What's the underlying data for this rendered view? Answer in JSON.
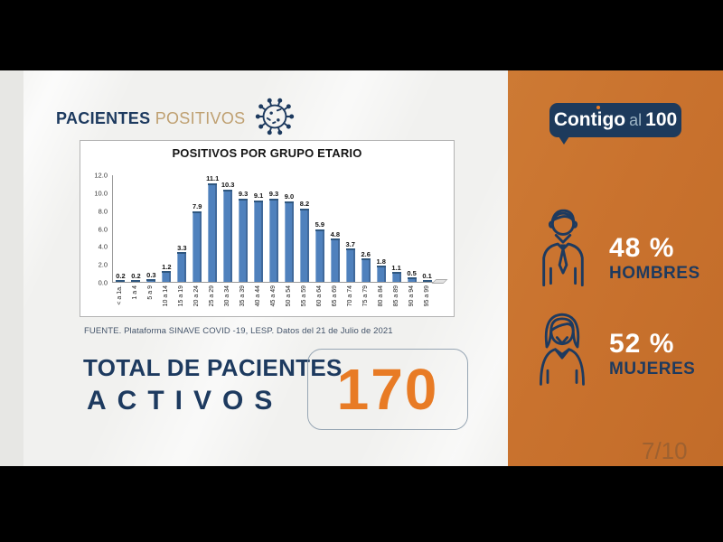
{
  "header": {
    "title_primary": "PACIENTES",
    "title_secondary": "POSITIVOS"
  },
  "chart_data": {
    "type": "bar",
    "title": "POSITIVOS POR GRUPO ETARIO",
    "categories": [
      "< a 1a.",
      "1 a 4",
      "5 a 9",
      "10 a 14",
      "15 a 19",
      "20 a 24",
      "25 a 29",
      "30 a 34",
      "35 a 39",
      "40 a 44",
      "45 a 49",
      "50 a 54",
      "55 a 59",
      "60 a 64",
      "65 a 69",
      "70 a 74",
      "75 a 79",
      "80 a 84",
      "85 a 89",
      "90 a 94",
      "95 a 99"
    ],
    "values": [
      0.2,
      0.2,
      0.3,
      1.2,
      3.3,
      7.9,
      11.1,
      10.3,
      9.3,
      9.1,
      9.3,
      9.0,
      8.2,
      5.9,
      4.8,
      3.7,
      2.6,
      1.8,
      1.1,
      0.5,
      0.1
    ],
    "value_labels": [
      "0.2",
      "0.2",
      "0.3",
      "1.2",
      "3.3",
      "7.9",
      "11.1",
      "10.3",
      "9.3",
      "9.1",
      "9.3",
      "9.0",
      "8.2",
      "5.9",
      "4.8",
      "3.7",
      "2.6",
      "1.8",
      "1.1",
      "0.5",
      "0.1"
    ],
    "xlabel": "",
    "ylabel": "",
    "ylim": [
      0,
      12
    ],
    "yticks": [
      "12.0",
      "10.0",
      "8.0",
      "6.0",
      "4.0",
      "2.0",
      "0.0"
    ],
    "grid": false,
    "legend": false,
    "bar_color": "#4f81bd",
    "source_note": "FUENTE. Plataforma SINAVE COVID -19, LESP. Datos del 21 de Julio de 2021"
  },
  "total": {
    "label_line1": "TOTAL DE PACIENTES",
    "label_line2": "ACTIVOS",
    "value": "170"
  },
  "demographics": {
    "men": {
      "percent": "48 %",
      "label": "HOMBRES"
    },
    "women": {
      "percent": "52 %",
      "label": "MUJERES"
    }
  },
  "logo": {
    "word1": "Contigo",
    "word2": "al",
    "word3": "100"
  },
  "page_indicator": "7/10",
  "colors": {
    "orange_panel": "#c9722e",
    "accent_orange": "#e87b25",
    "navy": "#1d3a5f",
    "tan": "#bfa071",
    "bar_blue": "#4f81bd",
    "background": "#f1f1ef"
  }
}
